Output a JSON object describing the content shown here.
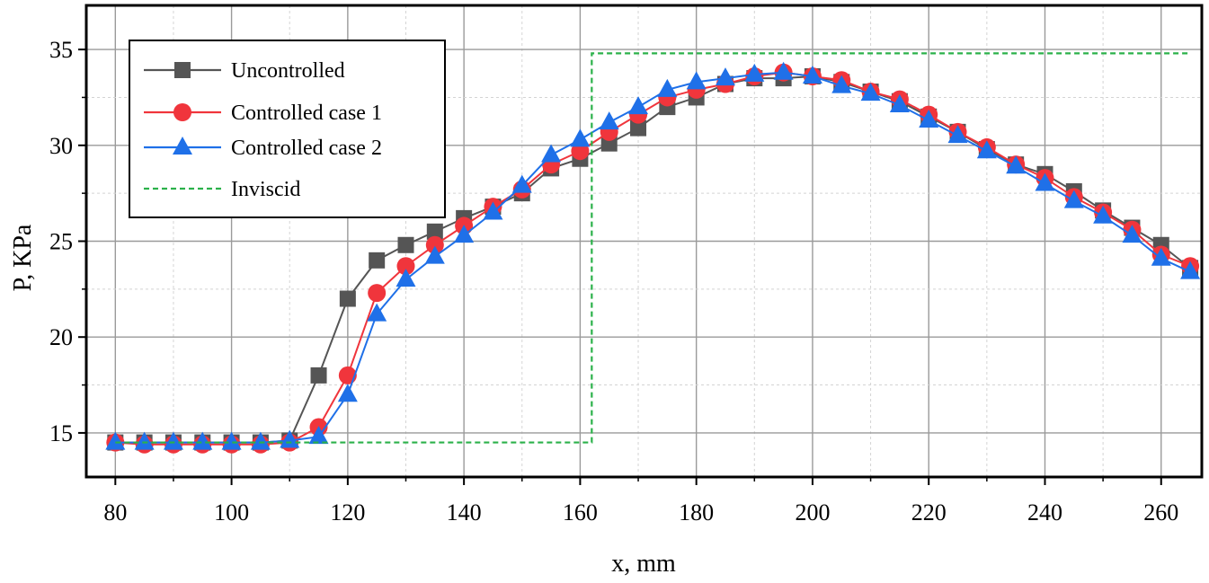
{
  "chart_data": {
    "type": "line",
    "xlabel": "x, mm",
    "ylabel": "P, KPa",
    "xlim": [
      75,
      267
    ],
    "ylim": [
      12.7,
      37.3
    ],
    "xticks": [
      80,
      100,
      120,
      140,
      160,
      180,
      200,
      220,
      240,
      260
    ],
    "yticks": [
      15,
      20,
      25,
      30,
      35
    ],
    "grid": true,
    "legend_position": "top-left",
    "x": [
      80,
      85,
      90,
      95,
      100,
      105,
      110,
      115,
      120,
      125,
      130,
      135,
      140,
      145,
      150,
      155,
      160,
      165,
      170,
      175,
      180,
      185,
      190,
      195,
      200,
      205,
      210,
      215,
      220,
      225,
      230,
      235,
      240,
      245,
      250,
      255,
      260,
      265
    ],
    "series": [
      {
        "name": "Uncontrolled",
        "color": "#555555",
        "marker": "square",
        "style": "solid",
        "values": [
          14.5,
          14.5,
          14.5,
          14.5,
          14.5,
          14.5,
          14.6,
          18.0,
          22.0,
          24.0,
          24.8,
          25.5,
          26.2,
          26.8,
          27.5,
          28.8,
          29.3,
          30.1,
          30.9,
          32.0,
          32.5,
          33.2,
          33.5,
          33.5,
          33.6,
          33.3,
          32.8,
          32.3,
          31.5,
          30.7,
          29.8,
          29.0,
          28.5,
          27.6,
          26.6,
          25.7,
          24.8,
          23.6
        ]
      },
      {
        "name": "Controlled case 1",
        "color": "#f0353c",
        "marker": "circle",
        "style": "solid",
        "values": [
          14.5,
          14.4,
          14.4,
          14.4,
          14.4,
          14.4,
          14.5,
          15.3,
          18.0,
          22.3,
          23.7,
          24.8,
          25.8,
          26.8,
          27.7,
          29.0,
          29.7,
          30.7,
          31.6,
          32.5,
          32.9,
          33.2,
          33.6,
          33.8,
          33.6,
          33.4,
          32.8,
          32.4,
          31.6,
          30.7,
          29.9,
          29.0,
          28.3,
          27.3,
          26.5,
          25.6,
          24.3,
          23.7
        ]
      },
      {
        "name": "Controlled case 2",
        "color": "#1f70e8",
        "marker": "triangle",
        "style": "solid",
        "values": [
          14.5,
          14.5,
          14.5,
          14.5,
          14.5,
          14.5,
          14.6,
          14.8,
          17.0,
          21.2,
          23.0,
          24.2,
          25.3,
          26.5,
          27.9,
          29.5,
          30.3,
          31.2,
          32.0,
          32.9,
          33.3,
          33.5,
          33.7,
          33.8,
          33.6,
          33.1,
          32.7,
          32.1,
          31.3,
          30.5,
          29.7,
          28.9,
          28.0,
          27.1,
          26.3,
          25.3,
          24.1,
          23.4
        ]
      },
      {
        "name": "Inviscid",
        "color": "#2bb14a",
        "marker": "none",
        "style": "dashed",
        "points": [
          [
            80,
            14.5
          ],
          [
            162,
            14.5
          ],
          [
            162,
            34.8
          ],
          [
            265,
            34.8
          ]
        ]
      }
    ]
  }
}
